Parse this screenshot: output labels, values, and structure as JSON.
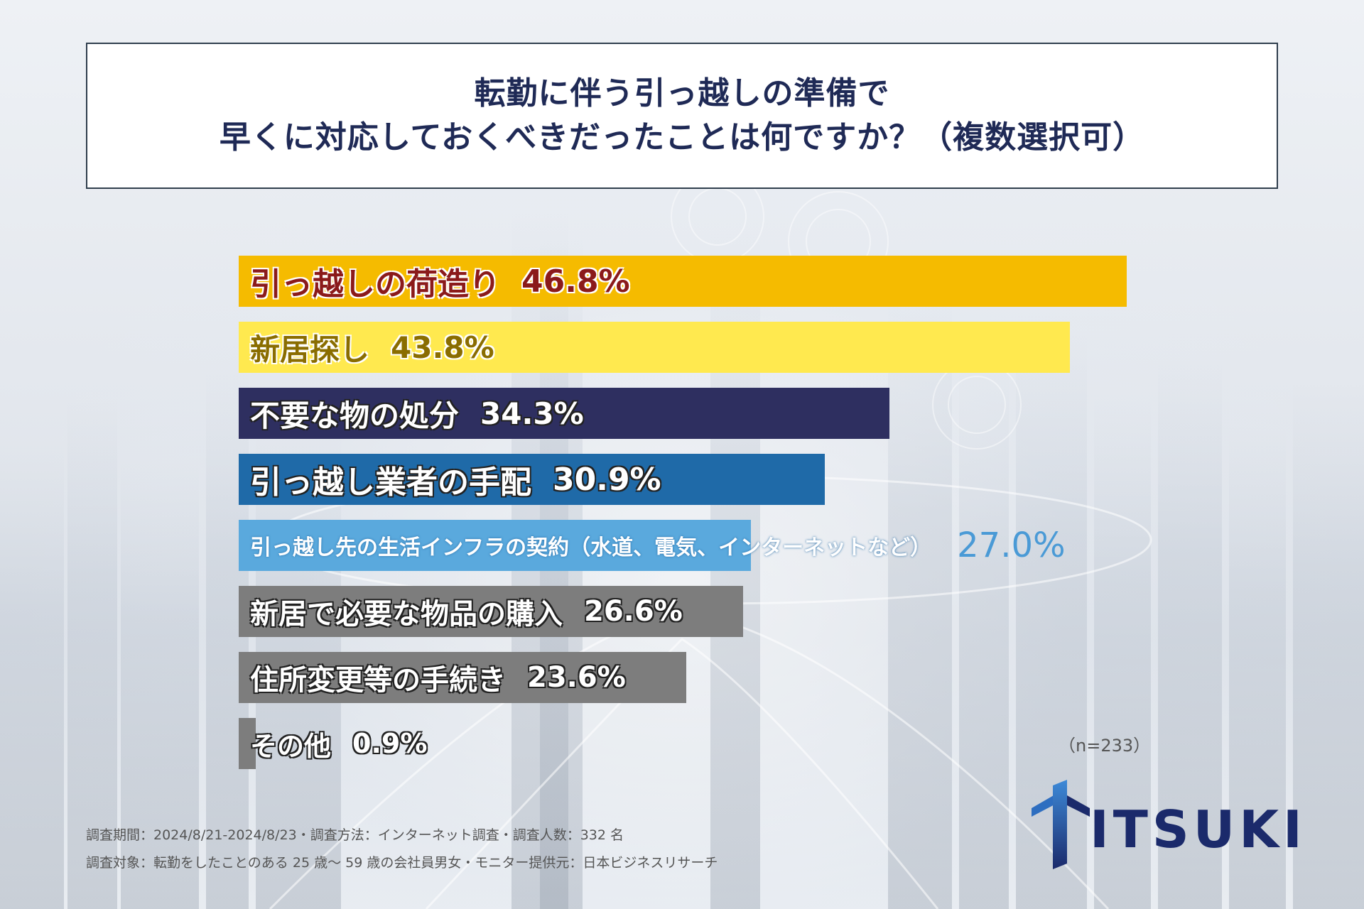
{
  "title": {
    "line1": "転勤に伴う引っ越しの準備で",
    "line2": "早くに対応しておくべきだったことは何ですか？（複数選択可）"
  },
  "chart_data": {
    "type": "bar",
    "orientation": "horizontal",
    "categories": [
      "引っ越しの荷造り",
      "新居探し",
      "不要な物の処分",
      "引っ越し業者の手配",
      "引っ越し先の生活インフラの契約（水道、電気、インターネットなど）",
      "新居で必要な物品の購入",
      "住所変更等の手続き",
      "その他"
    ],
    "values": [
      46.8,
      43.8,
      34.3,
      30.9,
      27.0,
      26.6,
      23.6,
      0.9
    ],
    "value_labels": [
      "46.8%",
      "43.8%",
      "34.3%",
      "30.9%",
      "27.0%",
      "26.6%",
      "23.6%",
      "0.9%"
    ],
    "bar_colors": [
      "#f5bb00",
      "#ffe94f",
      "#2e2f60",
      "#1f6aa8",
      "#5aa9dd",
      "#7d7d7d",
      "#7d7d7d",
      "#7d7d7d"
    ],
    "label_colors": [
      "#8b1a1a",
      "#8a6d00",
      "#ffffff",
      "#ffffff",
      "#ffffff",
      "#ffffff",
      "#ffffff",
      "#ffffff"
    ],
    "xlim": [
      0,
      46.8
    ],
    "note": "（n=233）"
  },
  "footer": {
    "line1": "調査期間：2024/8/21-2024/8/23・調査方法：インターネット調査・調査人数：332 名",
    "line2": "調査対象：転勤をしたことのある 25 歳～ 59 歳の会社員男女・モニター提供元：日本ビジネスリサーチ"
  },
  "logo": {
    "text": "ITSUKI",
    "color": "#1b2a6b"
  }
}
